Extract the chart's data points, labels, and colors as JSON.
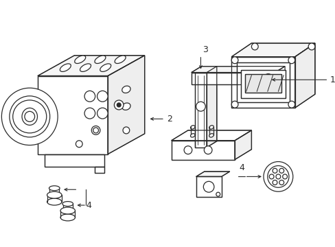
{
  "bg_color": "#ffffff",
  "line_color": "#2a2a2a",
  "lw": 0.9,
  "fig_w": 4.89,
  "fig_h": 3.6,
  "dpi": 100
}
